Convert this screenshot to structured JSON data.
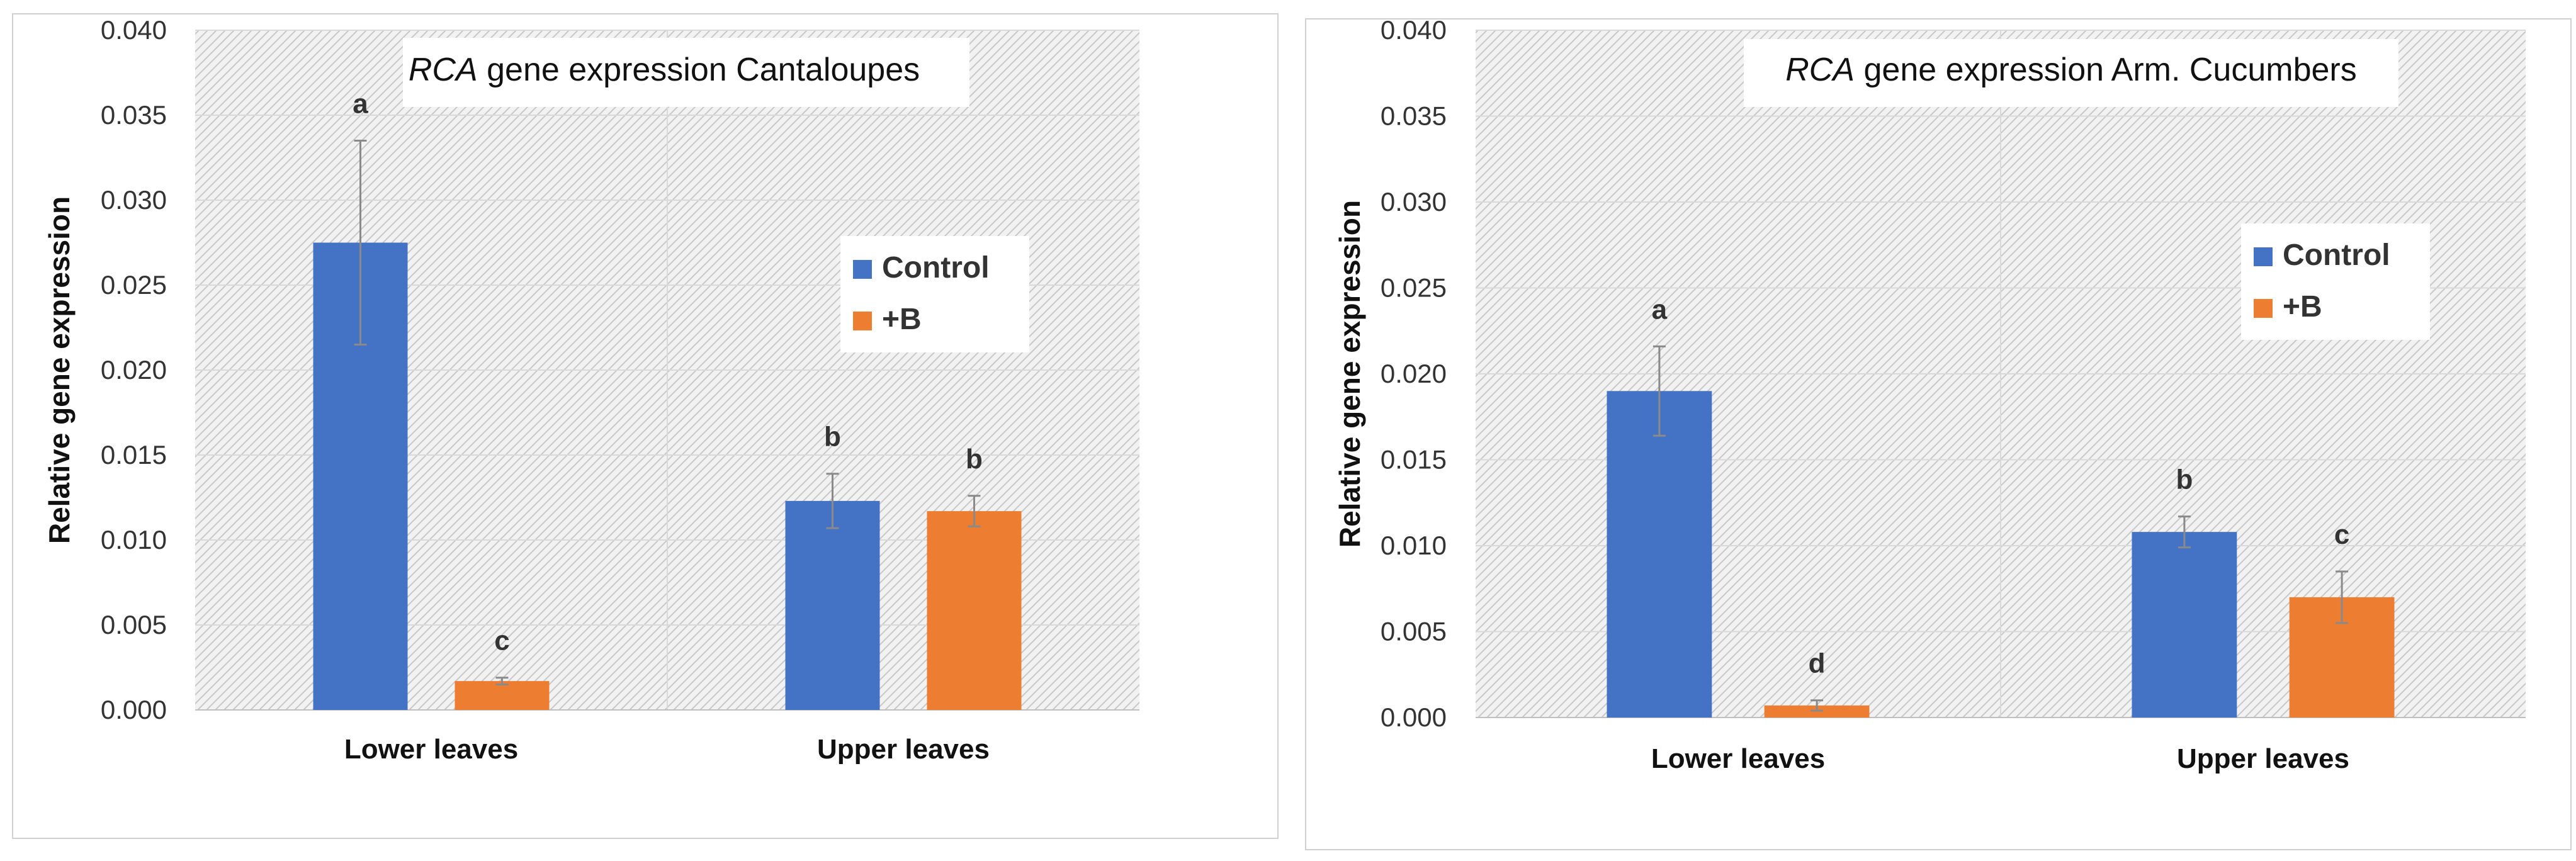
{
  "chart_data": [
    {
      "type": "bar",
      "title_italic": "RCA",
      "title_rest": " gene expression Cantaloupes",
      "ylabel": "Relative gene expression",
      "xlabel": "",
      "ylim": [
        0,
        0.04
      ],
      "yticks": [
        "0.000",
        "0.005",
        "0.010",
        "0.015",
        "0.020",
        "0.025",
        "0.030",
        "0.035",
        "0.040"
      ],
      "categories": [
        "Lower leaves",
        "Upper leaves"
      ],
      "grid": true,
      "legend_position": "right",
      "series": [
        {
          "name": "Control",
          "color": "#4472C4",
          "values": [
            0.0275,
            0.0123
          ],
          "errors": [
            0.006,
            0.0016
          ],
          "labels": [
            "a",
            "b"
          ]
        },
        {
          "name": "+B",
          "color": "#ED7D31",
          "values": [
            0.0017,
            0.0117
          ],
          "errors": [
            0.0002,
            0.0009
          ],
          "labels": [
            "c",
            "b"
          ]
        }
      ]
    },
    {
      "type": "bar",
      "title_italic": "RCA",
      "title_rest": " gene expression Arm. Cucumbers",
      "ylabel": "Relative gene expression",
      "xlabel": "",
      "ylim": [
        0,
        0.04
      ],
      "yticks": [
        "0.000",
        "0.005",
        "0.010",
        "0.015",
        "0.020",
        "0.025",
        "0.030",
        "0.035",
        "0.040"
      ],
      "categories": [
        "Lower leaves",
        "Upper leaves"
      ],
      "grid": true,
      "legend_position": "right",
      "series": [
        {
          "name": "Control",
          "color": "#4472C4",
          "values": [
            0.019,
            0.0108
          ],
          "errors": [
            0.0026,
            0.0009
          ],
          "labels": [
            "a",
            "b"
          ]
        },
        {
          "name": "+B",
          "color": "#ED7D31",
          "values": [
            0.0007,
            0.007
          ],
          "errors": [
            0.0003,
            0.0015
          ],
          "labels": [
            "d",
            "c"
          ]
        }
      ]
    }
  ]
}
